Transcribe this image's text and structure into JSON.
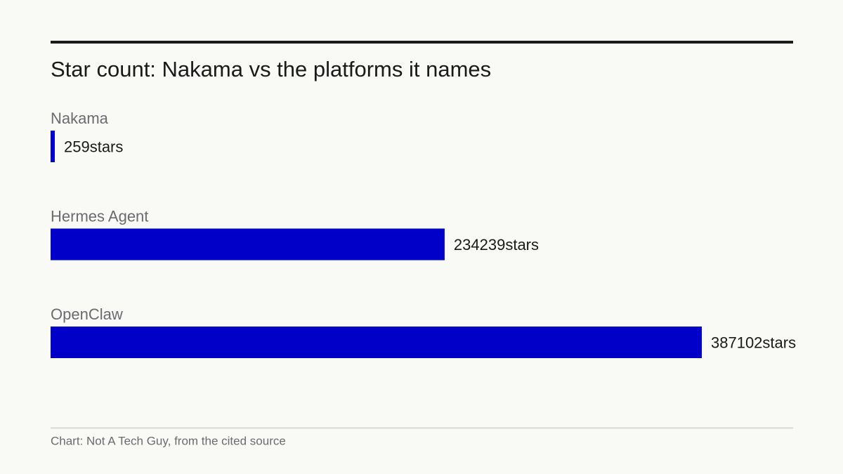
{
  "chart_data": {
    "type": "bar",
    "orientation": "horizontal",
    "title": "Star count: Nakama vs the platforms it names",
    "categories": [
      "Nakama",
      "Hermes Agent",
      "OpenClaw"
    ],
    "values": [
      259,
      234239,
      387102
    ],
    "value_labels": [
      "259stars",
      "234239stars",
      "387102stars"
    ],
    "color": "#0000c8",
    "source": "Chart: Not A Tech Guy, from the cited source"
  }
}
